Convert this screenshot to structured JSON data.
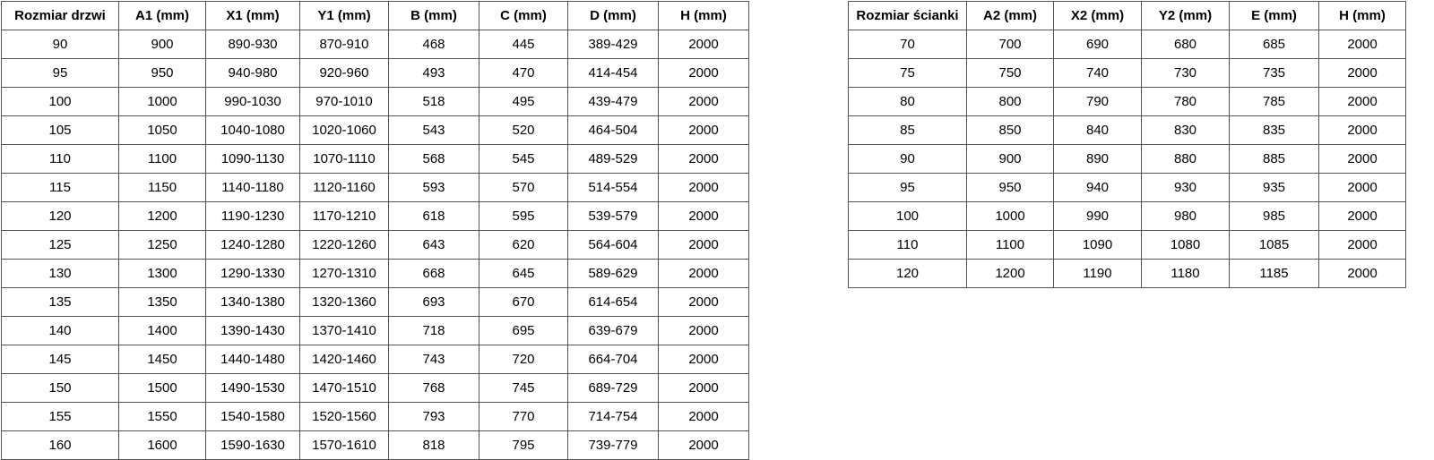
{
  "page": {
    "background_color": "#ffffff",
    "text_color": "#000000",
    "border_color": "#555555"
  },
  "tables": [
    {
      "name": "door-size-table",
      "headers": [
        "Rozmiar drzwi",
        "A1 (mm)",
        "X1 (mm)",
        "Y1 (mm)",
        "B (mm)",
        "C (mm)",
        "D (mm)",
        "H (mm)"
      ],
      "rows": [
        [
          "90",
          "900",
          "890-930",
          "870-910",
          "468",
          "445",
          "389-429",
          "2000"
        ],
        [
          "95",
          "950",
          "940-980",
          "920-960",
          "493",
          "470",
          "414-454",
          "2000"
        ],
        [
          "100",
          "1000",
          "990-1030",
          "970-1010",
          "518",
          "495",
          "439-479",
          "2000"
        ],
        [
          "105",
          "1050",
          "1040-1080",
          "1020-1060",
          "543",
          "520",
          "464-504",
          "2000"
        ],
        [
          "110",
          "1100",
          "1090-1130",
          "1070-1110",
          "568",
          "545",
          "489-529",
          "2000"
        ],
        [
          "115",
          "1150",
          "1140-1180",
          "1120-1160",
          "593",
          "570",
          "514-554",
          "2000"
        ],
        [
          "120",
          "1200",
          "1190-1230",
          "1170-1210",
          "618",
          "595",
          "539-579",
          "2000"
        ],
        [
          "125",
          "1250",
          "1240-1280",
          "1220-1260",
          "643",
          "620",
          "564-604",
          "2000"
        ],
        [
          "130",
          "1300",
          "1290-1330",
          "1270-1310",
          "668",
          "645",
          "589-629",
          "2000"
        ],
        [
          "135",
          "1350",
          "1340-1380",
          "1320-1360",
          "693",
          "670",
          "614-654",
          "2000"
        ],
        [
          "140",
          "1400",
          "1390-1430",
          "1370-1410",
          "718",
          "695",
          "639-679",
          "2000"
        ],
        [
          "145",
          "1450",
          "1440-1480",
          "1420-1460",
          "743",
          "720",
          "664-704",
          "2000"
        ],
        [
          "150",
          "1500",
          "1490-1530",
          "1470-1510",
          "768",
          "745",
          "689-729",
          "2000"
        ],
        [
          "155",
          "1550",
          "1540-1580",
          "1520-1560",
          "793",
          "770",
          "714-754",
          "2000"
        ],
        [
          "160",
          "1600",
          "1590-1630",
          "1570-1610",
          "818",
          "795",
          "739-779",
          "2000"
        ]
      ]
    },
    {
      "name": "wall-panel-size-table",
      "headers": [
        "Rozmiar ścianki",
        "A2 (mm)",
        "X2 (mm)",
        "Y2 (mm)",
        "E (mm)",
        "H (mm)"
      ],
      "rows": [
        [
          "70",
          "700",
          "690",
          "680",
          "685",
          "2000"
        ],
        [
          "75",
          "750",
          "740",
          "730",
          "735",
          "2000"
        ],
        [
          "80",
          "800",
          "790",
          "780",
          "785",
          "2000"
        ],
        [
          "85",
          "850",
          "840",
          "830",
          "835",
          "2000"
        ],
        [
          "90",
          "900",
          "890",
          "880",
          "885",
          "2000"
        ],
        [
          "95",
          "950",
          "940",
          "930",
          "935",
          "2000"
        ],
        [
          "100",
          "1000",
          "990",
          "980",
          "985",
          "2000"
        ],
        [
          "110",
          "1100",
          "1090",
          "1080",
          "1085",
          "2000"
        ],
        [
          "120",
          "1200",
          "1190",
          "1180",
          "1185",
          "2000"
        ]
      ]
    }
  ]
}
